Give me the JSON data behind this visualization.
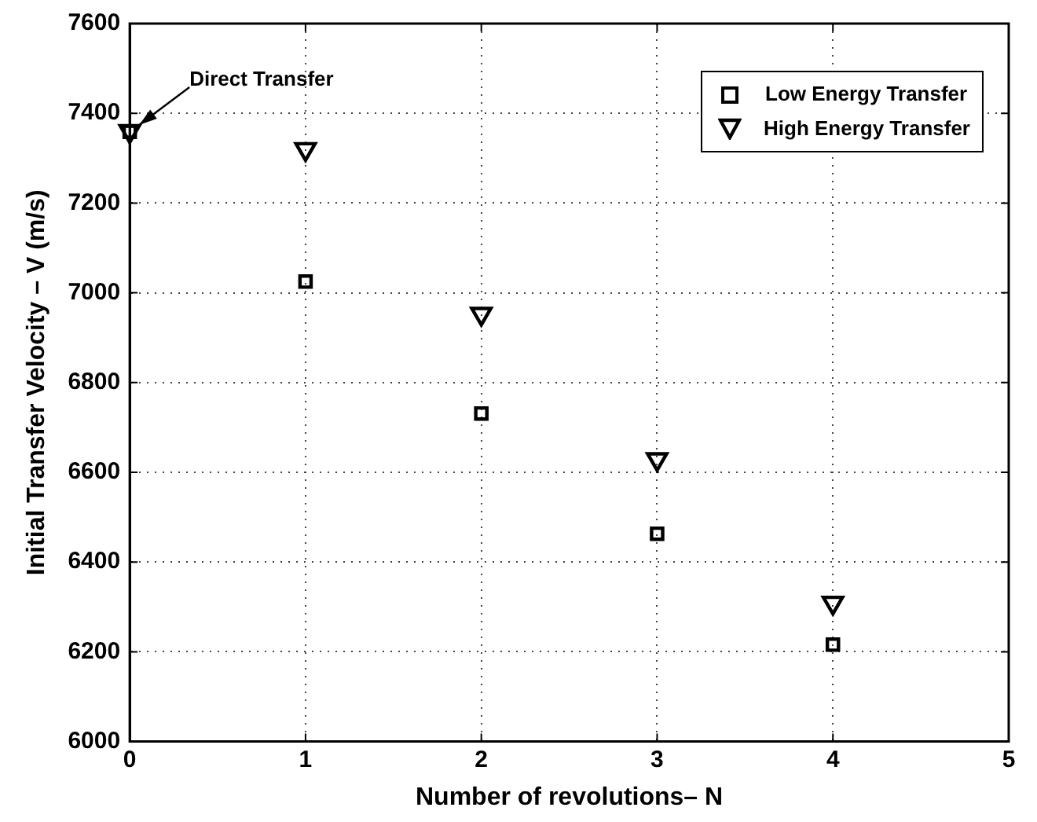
{
  "chart_data": {
    "type": "scatter",
    "xlabel": "Number of revolutions– N",
    "ylabel": "Initial Transfer Velocity – V (m/s)",
    "x": [
      0,
      1,
      2,
      3,
      4
    ],
    "series": [
      {
        "name": "Low Energy Transfer",
        "color": "#000000",
        "marker": "square",
        "values": [
          7359,
          7025,
          6731,
          6463,
          6216
        ]
      },
      {
        "name": "High Energy Transfer",
        "color": "#000000",
        "marker": "triangle",
        "values": [
          7360,
          7320,
          6953,
          6629,
          6309
        ]
      }
    ],
    "xlim": [
      0,
      5
    ],
    "xticks": [
      0,
      1,
      2,
      3,
      4,
      5
    ],
    "ylim": [
      6000,
      7600
    ],
    "yticks": [
      6000,
      6200,
      6400,
      6600,
      6800,
      7000,
      7200,
      7400,
      7600
    ],
    "grid": true,
    "legend": "top right",
    "annotations": [
      {
        "text": "Direct Transfer",
        "x": 0,
        "y": 7360
      }
    ]
  }
}
